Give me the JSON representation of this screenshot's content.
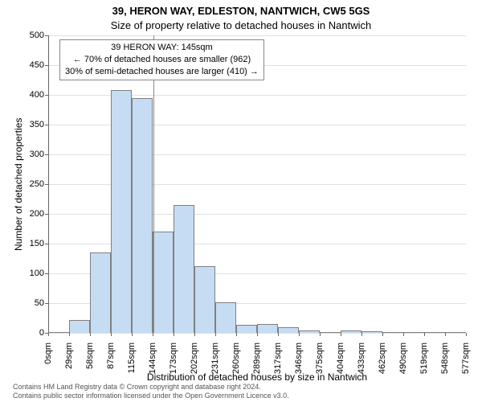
{
  "chart": {
    "type": "histogram",
    "title_main": "39, HERON WAY, EDLESTON, NANTWICH, CW5 5GS",
    "title_sub": "Size of property relative to detached houses in Nantwich",
    "title_fontsize": 13,
    "y_label": "Number of detached properties",
    "x_label": "Distribution of detached houses by size in Nantwich",
    "label_fontsize": 12,
    "tick_fontsize": 11,
    "background_color": "#ffffff",
    "grid_color": "#e0e0e0",
    "axis_color": "#666666",
    "y_min": 0,
    "y_max": 500,
    "y_ticks": [
      0,
      50,
      100,
      150,
      200,
      250,
      300,
      350,
      400,
      450,
      500
    ],
    "x_ticks": [
      "0sqm",
      "29sqm",
      "58sqm",
      "87sqm",
      "115sqm",
      "144sqm",
      "173sqm",
      "202sqm",
      "231sqm",
      "260sqm",
      "289sqm",
      "317sqm",
      "346sqm",
      "375sqm",
      "404sqm",
      "433sqm",
      "462sqm",
      "490sqm",
      "519sqm",
      "548sqm",
      "577sqm"
    ],
    "bars": [
      {
        "value": 0
      },
      {
        "value": 22
      },
      {
        "value": 135
      },
      {
        "value": 408
      },
      {
        "value": 395
      },
      {
        "value": 170
      },
      {
        "value": 215
      },
      {
        "value": 112
      },
      {
        "value": 52
      },
      {
        "value": 13
      },
      {
        "value": 15
      },
      {
        "value": 10
      },
      {
        "value": 4
      },
      {
        "value": 2
      },
      {
        "value": 4
      },
      {
        "value": 3
      },
      {
        "value": 2
      },
      {
        "value": 0
      },
      {
        "value": 0
      },
      {
        "value": 1
      }
    ],
    "bar_fill": "#c5dcf3",
    "bar_border": "#808080",
    "bar_width_ratio": 1.0,
    "marker": {
      "position_sqm": 145,
      "color": "#888888",
      "line1": "39 HERON WAY: 145sqm",
      "line2": "← 70% of detached houses are smaller (962)",
      "line3": "30% of semi-detached houses are larger (410) →"
    },
    "annotation_box": {
      "border_color": "#888888",
      "bg_color": "#ffffff"
    }
  },
  "footer": {
    "line1": "Contains HM Land Registry data © Crown copyright and database right 2024.",
    "line2": "Contains public sector information licensed under the Open Government Licence v3.0."
  }
}
